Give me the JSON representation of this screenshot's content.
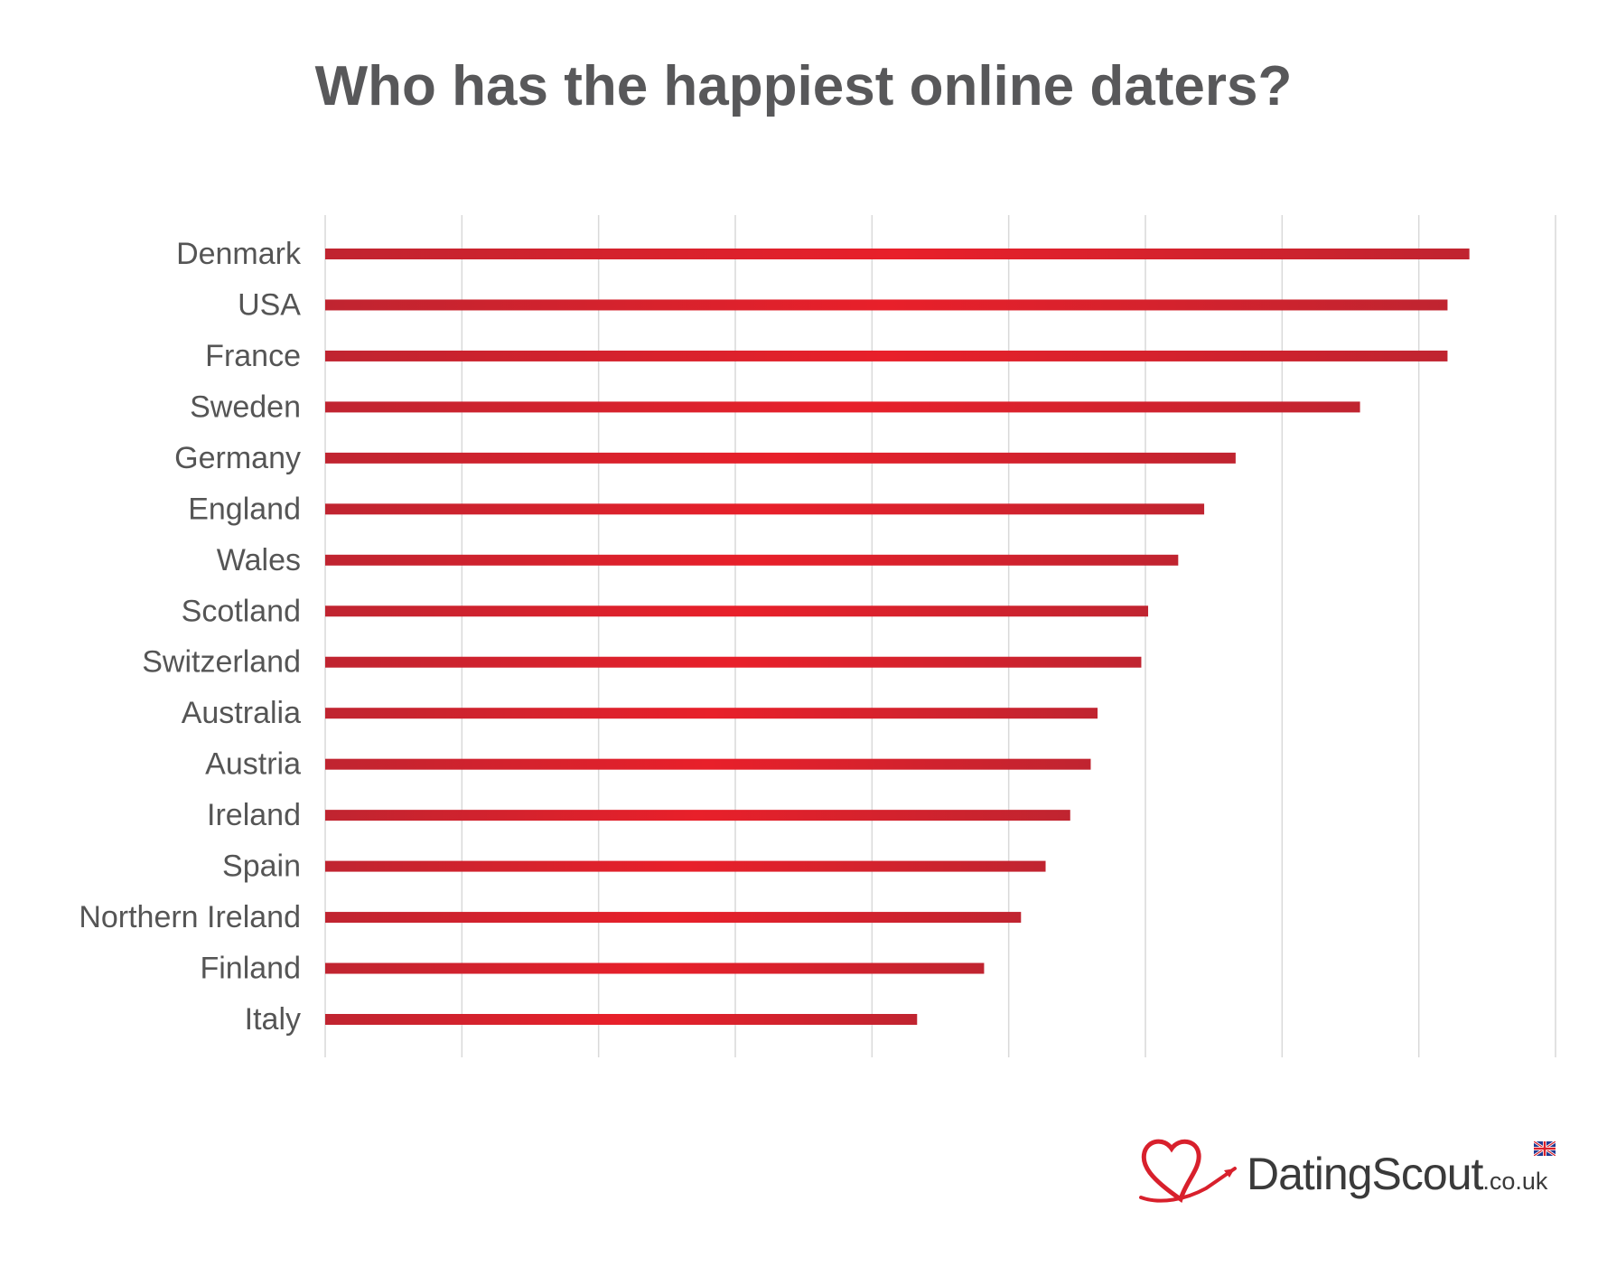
{
  "chart_data": {
    "type": "bar",
    "orientation": "horizontal",
    "title": "Who has the happiest online daters?",
    "xlabel": "",
    "ylabel": "",
    "grid": true,
    "xlim": [
      0,
      9
    ],
    "categories": [
      "Denmark",
      "USA",
      "France",
      "Sweden",
      "Germany",
      "England",
      "Wales",
      "Scotland",
      "Switzerland",
      "Australia",
      "Austria",
      "Ireland",
      "Spain",
      "Northern Ireland",
      "Finland",
      "Italy"
    ],
    "values": [
      8.37,
      8.21,
      8.21,
      7.57,
      6.66,
      6.43,
      6.24,
      6.02,
      5.97,
      5.65,
      5.6,
      5.45,
      5.27,
      5.09,
      4.82,
      4.33
    ],
    "bar_color": "#d8202c"
  },
  "logo": {
    "brand": "DatingScout",
    "tld": ".co.uk",
    "icon": "heart-arrow-icon",
    "flag_icon": "uk-flag-icon",
    "color": "#d8202c"
  }
}
